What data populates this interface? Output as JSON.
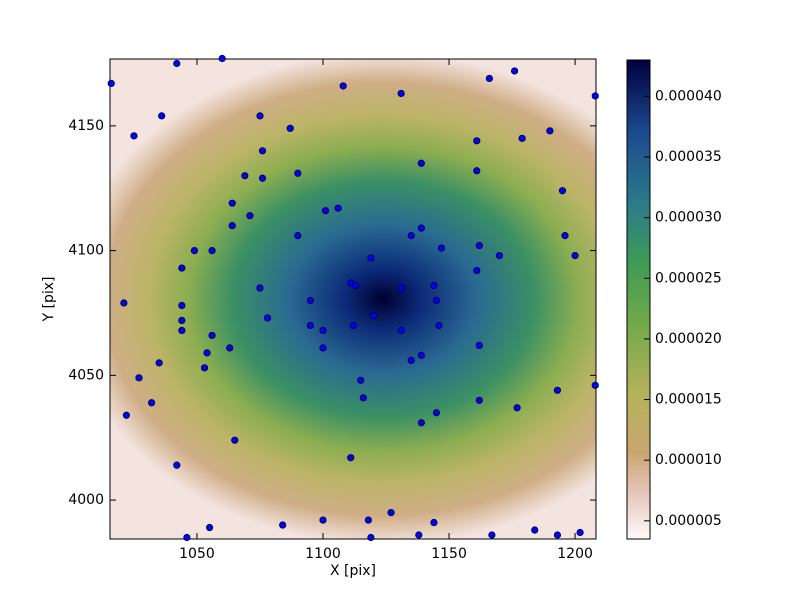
{
  "chart_data": {
    "type": "scatter",
    "xlabel": "X [pix]",
    "ylabel": "Y [pix]",
    "x": [
      1016,
      1042,
      1060,
      1108,
      1131,
      1166,
      1176,
      1208,
      1036,
      1025,
      1075,
      1087,
      1190,
      1161,
      1179,
      1139,
      1161,
      1076,
      1076,
      1069,
      1090,
      1064,
      1071,
      1064,
      1106,
      1101,
      1090,
      1139,
      1135,
      1147,
      1162,
      1170,
      1195,
      1196,
      1200,
      1049,
      1056,
      1044,
      1021,
      1044,
      1075,
      1119,
      1111,
      1113,
      1095,
      1131,
      1144,
      1161,
      1044,
      1078,
      1095,
      1100,
      1112,
      1120,
      1131,
      1145,
      1146,
      1044,
      1056,
      1063,
      1054,
      1035,
      1053,
      1100,
      1162,
      1139,
      1135,
      1027,
      1115,
      1032,
      1022,
      1116,
      1065,
      1139,
      1145,
      1162,
      1177,
      1193,
      1208,
      1111,
      1042,
      1055,
      1084,
      1100,
      1118,
      1127,
      1144,
      1046,
      1119,
      1138,
      1167,
      1184,
      1193,
      1202
    ],
    "values": [
      4167,
      4175,
      4177,
      4166,
      4163,
      4169,
      4172,
      4162,
      4154,
      4146,
      4154,
      4149,
      4148,
      4144,
      4145,
      4135,
      4132,
      4140,
      4129,
      4130,
      4131,
      4119,
      4114,
      4110,
      4117,
      4116,
      4106,
      4109,
      4106,
      4101,
      4102,
      4098,
      4124,
      4106,
      4098,
      4100,
      4100,
      4093,
      4079,
      4078,
      4085,
      4097,
      4087,
      4086,
      4080,
      4085,
      4086,
      4092,
      4072,
      4073,
      4070,
      4068,
      4070,
      4074,
      4068,
      4080,
      4070,
      4068,
      4066,
      4061,
      4059,
      4055,
      4053,
      4061,
      4062,
      4058,
      4056,
      4049,
      4048,
      4039,
      4034,
      4041,
      4024,
      4031,
      4035,
      4040,
      4037,
      4044,
      4046,
      4017,
      4014,
      3989,
      3990,
      3992,
      3992,
      3995,
      3991,
      3985,
      3985,
      3986,
      3986,
      3988,
      3986,
      3987
    ],
    "color": "#0000ff",
    "xlim": [
      1015.5,
      1208.3
    ],
    "ylim": [
      3984.4,
      4176.8
    ],
    "xticks": [
      1050,
      1100,
      1150,
      1200
    ],
    "yticks": [
      4000,
      4050,
      4100,
      4150
    ],
    "colorbar": {
      "ylim": [
        3.5e-06,
        4.3e-05
      ],
      "yticks": [
        {
          "value": 5e-06,
          "label": "0.000005"
        },
        {
          "value": 1e-05,
          "label": "0.000010"
        },
        {
          "value": 1.5e-05,
          "label": "0.000015"
        },
        {
          "value": 2e-05,
          "label": "0.000020"
        },
        {
          "value": 2.5e-05,
          "label": "0.000025"
        },
        {
          "value": 3e-05,
          "label": "0.000030"
        },
        {
          "value": 3.5e-05,
          "label": "0.000035"
        },
        {
          "value": 4e-05,
          "label": "0.000040"
        }
      ]
    }
  }
}
